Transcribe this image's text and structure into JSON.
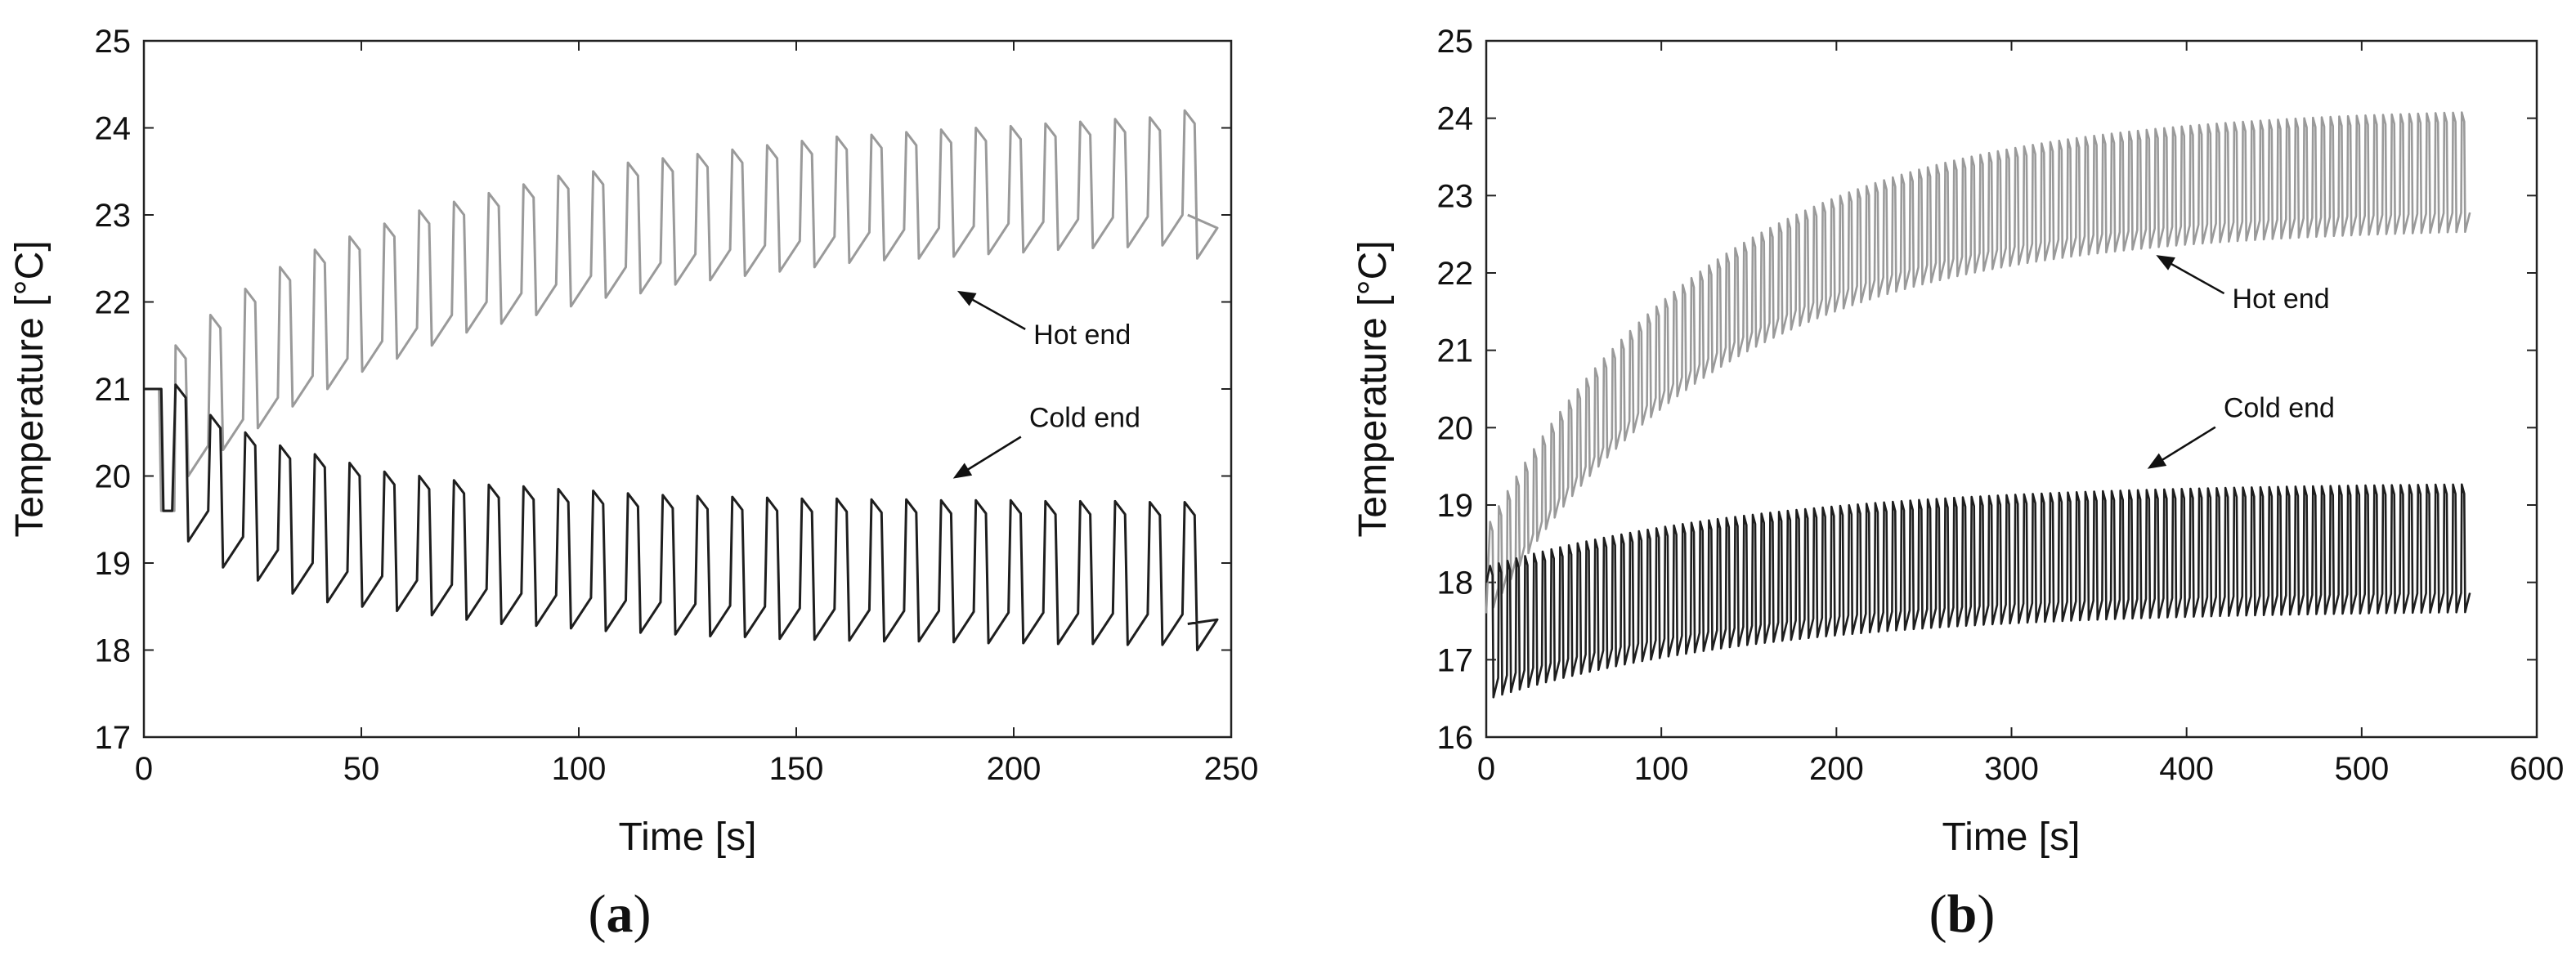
{
  "chart_data": [
    {
      "type": "line",
      "panel": "(a)",
      "panel_letter": "a",
      "xlabel": "Time [s]",
      "ylabel": "Temperature [°C]",
      "xlim": [
        0,
        250
      ],
      "ylim": [
        17,
        25
      ],
      "xticks": [
        0,
        50,
        100,
        150,
        200,
        250
      ],
      "yticks": [
        17,
        18,
        19,
        20,
        21,
        22,
        23,
        24,
        25
      ],
      "grid": false,
      "legend": "none",
      "colors": {
        "hot": "#9a9a9a",
        "cold": "#1e1e1e"
      },
      "annotations": [
        {
          "text": "Hot end",
          "series": "hot",
          "x": 188,
          "y": 22.1
        },
        {
          "text": "Cold end",
          "series": "cold",
          "x": 187,
          "y": 20.0
        }
      ],
      "cycle": {
        "period_s": 8,
        "cycles": 30,
        "end_s": 240
      },
      "series": [
        {
          "id": "hot",
          "peaks": [
            21.5,
            21.85,
            22.15,
            22.4,
            22.6,
            22.75,
            22.9,
            23.05,
            23.15,
            23.25,
            23.35,
            23.45,
            23.5,
            23.6,
            23.65,
            23.7,
            23.75,
            23.8,
            23.85,
            23.9,
            23.92,
            23.95,
            23.98,
            24.0,
            24.02,
            24.05,
            24.07,
            24.1,
            24.12,
            24.2
          ],
          "troughs": [
            20.0,
            20.3,
            20.55,
            20.8,
            21.0,
            21.2,
            21.35,
            21.5,
            21.65,
            21.75,
            21.85,
            21.95,
            22.05,
            22.1,
            22.2,
            22.25,
            22.3,
            22.35,
            22.4,
            22.45,
            22.48,
            22.5,
            22.52,
            22.55,
            22.57,
            22.6,
            22.62,
            22.63,
            22.65,
            22.5
          ],
          "end_value": 23.0
        },
        {
          "id": "cold",
          "peaks": [
            21.05,
            20.7,
            20.5,
            20.35,
            20.25,
            20.15,
            20.05,
            20.0,
            19.95,
            19.9,
            19.88,
            19.85,
            19.83,
            19.8,
            19.78,
            19.77,
            19.76,
            19.75,
            19.74,
            19.74,
            19.73,
            19.73,
            19.72,
            19.72,
            19.72,
            19.71,
            19.71,
            19.71,
            19.7,
            19.7
          ],
          "troughs": [
            19.25,
            18.95,
            18.8,
            18.65,
            18.55,
            18.5,
            18.45,
            18.4,
            18.35,
            18.3,
            18.28,
            18.25,
            18.22,
            18.2,
            18.18,
            18.16,
            18.15,
            18.13,
            18.12,
            18.11,
            18.1,
            18.1,
            18.09,
            18.08,
            18.08,
            18.07,
            18.07,
            18.06,
            18.06,
            18.0
          ],
          "end_value": 18.3
        }
      ]
    },
    {
      "type": "line",
      "panel": "(b)",
      "panel_letter": "b",
      "xlabel": "Time [s]",
      "ylabel": "Temperature [°C]",
      "xlim": [
        0,
        600
      ],
      "ylim": [
        16,
        25
      ],
      "xticks": [
        0,
        100,
        200,
        300,
        400,
        500,
        600
      ],
      "yticks": [
        16,
        17,
        18,
        19,
        20,
        21,
        22,
        23,
        24,
        25
      ],
      "grid": false,
      "legend": "none",
      "colors": {
        "hot": "#9a9a9a",
        "cold": "#1e1e1e"
      },
      "annotations": [
        {
          "text": "Hot end",
          "series": "hot",
          "x": 385,
          "y": 22.2
        },
        {
          "text": "Cold end",
          "series": "cold",
          "x": 380,
          "y": 19.5
        }
      ],
      "cycle": {
        "period_s": 5,
        "cycles": 112,
        "end_s": 560
      },
      "series": [
        {
          "id": "hot",
          "peak_start": 18.7,
          "peak_end": 24.15,
          "trough_start": 17.6,
          "trough_end": 22.6,
          "time_constant_s": 130,
          "first_value": 17.6
        },
        {
          "id": "cold",
          "peak_start": 18.2,
          "peak_end": 19.3,
          "trough_start": 16.5,
          "trough_end": 17.65,
          "time_constant_s": 160,
          "first_value": 18.0
        }
      ]
    }
  ]
}
